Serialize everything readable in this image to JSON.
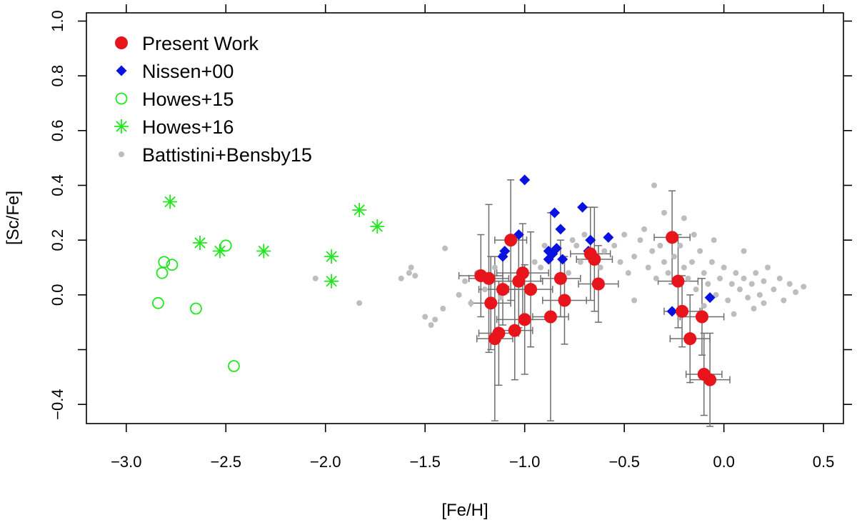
{
  "chart_data": {
    "type": "scatter",
    "xlabel": "[Fe/H]",
    "ylabel": "[Sc/Fe]",
    "xlim": [
      -3.2,
      0.6
    ],
    "ylim": [
      -0.47,
      1.03
    ],
    "x_ticks": [
      -3.0,
      -2.5,
      -2.0,
      -1.5,
      -1.0,
      -0.5,
      0.0,
      0.5
    ],
    "x_tick_labels": [
      "−3.0",
      "−2.5",
      "−2.0",
      "−1.5",
      "−1.0",
      "−0.5",
      "0.0",
      "0.5"
    ],
    "y_ticks": [
      -0.4,
      -0.2,
      0.0,
      0.2,
      0.4,
      0.6,
      0.8,
      1.0
    ],
    "y_tick_labels": [
      "−0.4",
      "",
      "0.0",
      "0.2",
      "0.4",
      "0.6",
      "0.8",
      "1.0"
    ],
    "grid": false,
    "legend_position": "top-left",
    "colors": {
      "present_work": "#e8141c",
      "nissen": "#0a12e0",
      "howes": "#22e61e",
      "battistini": "#bdbdbd",
      "errorbar": "#6e6e6e"
    },
    "series": [
      {
        "name": "Present Work",
        "marker": "filled-circle",
        "points": [
          {
            "x": -1.22,
            "y": 0.07,
            "xerr": 0.11,
            "yerr": 0.15
          },
          {
            "x": -1.18,
            "y": 0.06,
            "xerr": 0.1,
            "yerr": 0.27
          },
          {
            "x": -1.17,
            "y": -0.03,
            "xerr": 0.1,
            "yerr": 0.17
          },
          {
            "x": -1.15,
            "y": -0.16,
            "xerr": 0.09,
            "yerr": 0.3
          },
          {
            "x": -1.13,
            "y": -0.14,
            "xerr": 0.1,
            "yerr": 0.19
          },
          {
            "x": -1.11,
            "y": 0.02,
            "xerr": 0.12,
            "yerr": 0.13
          },
          {
            "x": -1.07,
            "y": 0.2,
            "xerr": 0.08,
            "yerr": 0.22
          },
          {
            "x": -1.05,
            "y": -0.13,
            "xerr": 0.09,
            "yerr": 0.18
          },
          {
            "x": -1.03,
            "y": 0.05,
            "xerr": 0.12,
            "yerr": 0.17
          },
          {
            "x": -1.01,
            "y": 0.08,
            "xerr": 0.13,
            "yerr": 0.18
          },
          {
            "x": -1.0,
            "y": -0.09,
            "xerr": 0.14,
            "yerr": 0.2
          },
          {
            "x": -0.97,
            "y": 0.02,
            "xerr": 0.11,
            "yerr": 0.21
          },
          {
            "x": -0.87,
            "y": -0.08,
            "xerr": 0.09,
            "yerr": 0.38
          },
          {
            "x": -0.82,
            "y": 0.06,
            "xerr": 0.1,
            "yerr": 0.14
          },
          {
            "x": -0.8,
            "y": -0.02,
            "xerr": 0.11,
            "yerr": 0.16
          },
          {
            "x": -0.67,
            "y": 0.15,
            "xerr": 0.1,
            "yerr": 0.17
          },
          {
            "x": -0.65,
            "y": 0.13,
            "xerr": 0.09,
            "yerr": 0.19
          },
          {
            "x": -0.63,
            "y": 0.04,
            "xerr": 0.1,
            "yerr": 0.14
          },
          {
            "x": -0.26,
            "y": 0.21,
            "xerr": 0.09,
            "yerr": 0.17
          },
          {
            "x": -0.23,
            "y": 0.05,
            "xerr": 0.1,
            "yerr": 0.17
          },
          {
            "x": -0.21,
            "y": -0.06,
            "xerr": 0.09,
            "yerr": 0.13
          },
          {
            "x": -0.17,
            "y": -0.16,
            "xerr": 0.1,
            "yerr": 0.16
          },
          {
            "x": -0.11,
            "y": -0.08,
            "xerr": 0.11,
            "yerr": 0.14
          },
          {
            "x": -0.1,
            "y": -0.29,
            "xerr": 0.09,
            "yerr": 0.15
          },
          {
            "x": -0.07,
            "y": -0.31,
            "xerr": 0.1,
            "yerr": 0.17
          }
        ]
      },
      {
        "name": "Nissen+00",
        "marker": "filled-diamond",
        "points": [
          {
            "x": -1.11,
            "y": 0.14
          },
          {
            "x": -1.1,
            "y": 0.16
          },
          {
            "x": -1.03,
            "y": 0.22
          },
          {
            "x": -1.0,
            "y": 0.42
          },
          {
            "x": -0.88,
            "y": 0.13
          },
          {
            "x": -0.88,
            "y": 0.16
          },
          {
            "x": -0.86,
            "y": 0.15
          },
          {
            "x": -0.85,
            "y": 0.3
          },
          {
            "x": -0.84,
            "y": 0.17
          },
          {
            "x": -0.82,
            "y": 0.24
          },
          {
            "x": -0.81,
            "y": 0.13
          },
          {
            "x": -0.71,
            "y": 0.32
          },
          {
            "x": -0.68,
            "y": 0.16
          },
          {
            "x": -0.67,
            "y": 0.2
          },
          {
            "x": -0.58,
            "y": 0.21
          },
          {
            "x": -0.26,
            "y": -0.06
          },
          {
            "x": -0.07,
            "y": -0.01
          }
        ]
      },
      {
        "name": "Howes+15",
        "marker": "open-circle",
        "points": [
          {
            "x": -2.84,
            "y": -0.03
          },
          {
            "x": -2.82,
            "y": 0.08
          },
          {
            "x": -2.81,
            "y": 0.12
          },
          {
            "x": -2.77,
            "y": 0.11
          },
          {
            "x": -2.65,
            "y": -0.05
          },
          {
            "x": -2.5,
            "y": 0.18
          },
          {
            "x": -2.46,
            "y": -0.26
          }
        ]
      },
      {
        "name": "Howes+16",
        "marker": "asterisk",
        "points": [
          {
            "x": -2.78,
            "y": 0.34
          },
          {
            "x": -2.63,
            "y": 0.19
          },
          {
            "x": -2.53,
            "y": 0.16
          },
          {
            "x": -2.31,
            "y": 0.16
          },
          {
            "x": -1.97,
            "y": 0.14
          },
          {
            "x": -1.97,
            "y": 0.05
          },
          {
            "x": -1.83,
            "y": 0.31
          },
          {
            "x": -1.74,
            "y": 0.25
          }
        ]
      },
      {
        "name": "Battistini+Bensby15",
        "marker": "small-filled-circle",
        "points": [
          {
            "x": -2.05,
            "y": 0.06
          },
          {
            "x": -1.83,
            "y": -0.03
          },
          {
            "x": -1.62,
            "y": 0.06
          },
          {
            "x": -1.58,
            "y": 0.08
          },
          {
            "x": -1.57,
            "y": 0.1
          },
          {
            "x": -1.55,
            "y": 0.07
          },
          {
            "x": -1.5,
            "y": -0.08
          },
          {
            "x": -1.47,
            "y": -0.11
          },
          {
            "x": -1.45,
            "y": -0.09
          },
          {
            "x": -1.41,
            "y": -0.05
          },
          {
            "x": -1.4,
            "y": 0.17
          },
          {
            "x": -1.33,
            "y": 0.0
          },
          {
            "x": -1.3,
            "y": 0.05
          },
          {
            "x": -1.27,
            "y": -0.03
          },
          {
            "x": -1.24,
            "y": 0.08
          },
          {
            "x": -1.2,
            "y": 0.02
          },
          {
            "x": -1.15,
            "y": 0.1
          },
          {
            "x": -1.12,
            "y": -0.01
          },
          {
            "x": -0.95,
            "y": 0.12
          },
          {
            "x": -0.92,
            "y": 0.1
          },
          {
            "x": -0.9,
            "y": 0.18
          },
          {
            "x": -0.78,
            "y": 0.08
          },
          {
            "x": -0.76,
            "y": 0.2
          },
          {
            "x": -0.74,
            "y": 0.18
          },
          {
            "x": -0.72,
            "y": 0.12
          },
          {
            "x": -0.7,
            "y": 0.22
          },
          {
            "x": -0.62,
            "y": 0.1
          },
          {
            "x": -0.6,
            "y": 0.16
          },
          {
            "x": -0.55,
            "y": 0.18
          },
          {
            "x": -0.52,
            "y": 0.12
          },
          {
            "x": -0.5,
            "y": 0.22
          },
          {
            "x": -0.48,
            "y": 0.08
          },
          {
            "x": -0.45,
            "y": 0.14
          },
          {
            "x": -0.42,
            "y": 0.2
          },
          {
            "x": -0.4,
            "y": 0.24
          },
          {
            "x": -0.38,
            "y": 0.1
          },
          {
            "x": -0.36,
            "y": 0.16
          },
          {
            "x": -0.34,
            "y": 0.06
          },
          {
            "x": -0.32,
            "y": 0.18
          },
          {
            "x": -0.3,
            "y": 0.12
          },
          {
            "x": -0.28,
            "y": 0.08
          },
          {
            "x": -0.25,
            "y": 0.14
          },
          {
            "x": -0.22,
            "y": 0.18
          },
          {
            "x": -0.2,
            "y": 0.1
          },
          {
            "x": -0.18,
            "y": 0.06
          },
          {
            "x": -0.16,
            "y": 0.12
          },
          {
            "x": -0.14,
            "y": 0.02
          },
          {
            "x": -0.12,
            "y": 0.16
          },
          {
            "x": -0.1,
            "y": 0.08
          },
          {
            "x": -0.08,
            "y": 0.04
          },
          {
            "x": -0.06,
            "y": 0.12
          },
          {
            "x": -0.04,
            "y": 0.0
          },
          {
            "x": -0.02,
            "y": 0.06
          },
          {
            "x": 0.0,
            "y": 0.1
          },
          {
            "x": 0.02,
            "y": -0.02
          },
          {
            "x": 0.04,
            "y": 0.04
          },
          {
            "x": 0.06,
            "y": 0.08
          },
          {
            "x": 0.08,
            "y": 0.02
          },
          {
            "x": 0.1,
            "y": 0.06
          },
          {
            "x": 0.12,
            "y": -0.01
          },
          {
            "x": 0.14,
            "y": 0.04
          },
          {
            "x": 0.16,
            "y": 0.08
          },
          {
            "x": 0.18,
            "y": 0.0
          },
          {
            "x": 0.2,
            "y": 0.05
          },
          {
            "x": 0.22,
            "y": 0.1
          },
          {
            "x": 0.25,
            "y": 0.02
          },
          {
            "x": 0.28,
            "y": 0.06
          },
          {
            "x": 0.3,
            "y": -0.02
          },
          {
            "x": 0.33,
            "y": 0.04
          },
          {
            "x": 0.36,
            "y": 0.01
          },
          {
            "x": 0.4,
            "y": 0.03
          },
          {
            "x": -0.35,
            "y": 0.4
          },
          {
            "x": -0.3,
            "y": 0.3
          },
          {
            "x": -0.2,
            "y": 0.28
          },
          {
            "x": -0.15,
            "y": 0.22
          },
          {
            "x": -0.05,
            "y": 0.2
          },
          {
            "x": 0.1,
            "y": 0.16
          },
          {
            "x": 0.05,
            "y": -0.07
          },
          {
            "x": 0.15,
            "y": -0.05
          },
          {
            "x": 0.2,
            "y": -0.03
          },
          {
            "x": -0.45,
            "y": -0.02
          },
          {
            "x": -0.1,
            "y": -0.04
          }
        ]
      }
    ]
  }
}
